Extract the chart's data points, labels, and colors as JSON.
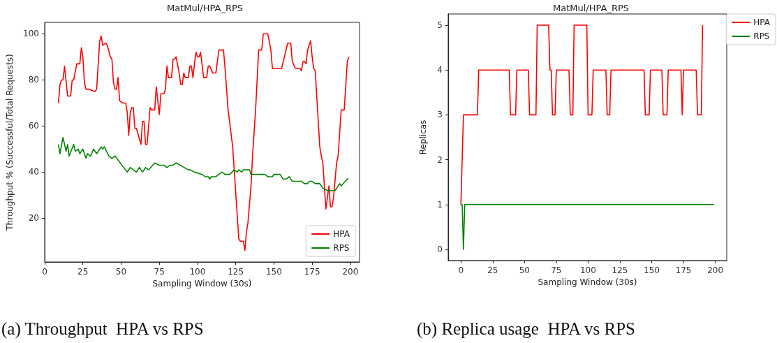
{
  "chart_data": [
    {
      "type": "line",
      "title": "MatMul/HPA_RPS",
      "xlabel": "Sampling Window (30s)",
      "ylabel": "Throughput % (Successful/Total Requests)",
      "xlim": [
        0,
        206
      ],
      "ylim": [
        1,
        105
      ],
      "xticks": [
        0,
        25,
        50,
        75,
        100,
        125,
        150,
        175,
        200
      ],
      "yticks": [
        20,
        40,
        60,
        80,
        100
      ],
      "legend": "bottom right",
      "annotations": [
        "(a) Throughput  HPA vs RPS"
      ],
      "series": [
        {
          "name": "HPA",
          "color": "#ff0000",
          "x": [
            9,
            10,
            11,
            12,
            13,
            15,
            17,
            18,
            19,
            21,
            23,
            24,
            25,
            26,
            27,
            29,
            33,
            34,
            36,
            37,
            38,
            40,
            41,
            43,
            44,
            45,
            46,
            47,
            48,
            49,
            51,
            52,
            53,
            54,
            55,
            56,
            57,
            58,
            59,
            60,
            63,
            64,
            65,
            66,
            67,
            69,
            70,
            72,
            73,
            75,
            76,
            78,
            79,
            80,
            81,
            83,
            84,
            85,
            86,
            88,
            89,
            90,
            91,
            92,
            94,
            95,
            96,
            97,
            98,
            99,
            100,
            101,
            102,
            104,
            106,
            107,
            108,
            110,
            112,
            114,
            117,
            118,
            120,
            123,
            127,
            128,
            130,
            131,
            132,
            133,
            135,
            136,
            138,
            140,
            142,
            143,
            144,
            146,
            148,
            149,
            155,
            159,
            161,
            162,
            164,
            167,
            168,
            169,
            170,
            171,
            172,
            174,
            175,
            176,
            177,
            180,
            181,
            182,
            184,
            186,
            187,
            188,
            189,
            191,
            192,
            194,
            196,
            198,
            199
          ],
          "values": [
            70,
            78,
            80,
            80,
            86,
            73,
            73,
            80,
            80,
            87,
            87,
            94,
            90,
            79,
            76,
            76,
            75,
            76,
            97,
            99,
            95,
            96,
            95,
            90,
            89,
            79,
            76,
            76,
            81,
            71,
            70,
            70,
            70,
            66,
            56,
            66,
            68,
            68,
            59,
            59,
            52,
            62,
            62,
            52,
            52,
            68,
            67,
            67,
            77,
            65,
            74,
            74,
            76,
            86,
            81,
            81,
            89,
            89,
            90,
            83,
            78,
            78,
            83,
            81,
            81,
            86,
            86,
            81,
            87,
            92,
            90,
            90,
            92,
            81,
            81,
            86,
            86,
            83,
            83,
            93,
            93,
            85,
            67,
            51,
            11,
            10,
            10,
            6,
            14,
            18,
            34,
            47,
            67,
            93,
            93,
            100,
            100,
            100,
            93,
            85,
            85,
            96,
            96,
            88,
            85,
            85,
            84,
            88,
            88,
            87,
            93,
            97,
            90,
            85,
            84,
            51,
            47,
            44,
            24,
            34,
            25,
            25,
            29,
            44,
            47,
            67,
            67,
            88,
            90
          ]
        },
        {
          "name": "RPS",
          "color": "#008000",
          "x": [
            9,
            10,
            12,
            14,
            15,
            16,
            19,
            20,
            22,
            23,
            25,
            27,
            28,
            30,
            32,
            34,
            37,
            38,
            39,
            42,
            44,
            46,
            54,
            56,
            60,
            62,
            64,
            66,
            68,
            72,
            75,
            77,
            78,
            80,
            82,
            84,
            86,
            94,
            95,
            98,
            103,
            105,
            107,
            108,
            109,
            112,
            114,
            116,
            118,
            121,
            124,
            126,
            127,
            129,
            130,
            134,
            135,
            138,
            139,
            143,
            144,
            146,
            149,
            150,
            154,
            156,
            158,
            160,
            162,
            166,
            168,
            170,
            172,
            173,
            175,
            177,
            179,
            180,
            182,
            185,
            190,
            193,
            194,
            198,
            199
          ],
          "values": [
            52,
            48,
            55,
            49,
            52,
            47,
            52,
            49,
            50,
            48,
            50,
            46,
            48,
            47,
            50,
            48,
            51,
            50,
            51,
            47,
            46,
            47,
            40,
            42,
            40,
            42,
            40,
            42,
            41,
            44,
            43,
            43,
            43,
            42,
            43,
            43,
            44,
            41,
            41,
            40,
            39,
            38,
            38,
            37,
            38,
            38,
            39,
            40,
            39,
            39,
            41,
            40,
            41,
            40,
            41,
            41,
            39,
            39,
            39,
            39,
            39,
            38,
            38,
            39,
            39,
            37,
            37,
            38,
            36,
            36,
            36,
            35,
            35,
            36,
            36,
            35,
            35,
            35,
            33,
            32,
            32,
            35,
            34,
            37,
            37
          ]
        }
      ]
    },
    {
      "type": "line",
      "title": "MatMul/HPA_RPS",
      "xlabel": "Sampling Window (30s)",
      "ylabel": "Replicas",
      "xlim": [
        -10,
        209
      ],
      "ylim": [
        -0.25,
        5.25
      ],
      "xticks": [
        0,
        25,
        50,
        75,
        100,
        125,
        150,
        175,
        200
      ],
      "yticks": [
        0,
        1,
        2,
        3,
        4,
        5
      ],
      "legend": "top right",
      "annotations": [
        "(b) Replica usage  HPA vs RPS"
      ],
      "series": [
        {
          "name": "HPA",
          "color": "#ff0000",
          "x": [
            0,
            2,
            13,
            14,
            38,
            39,
            43,
            44,
            53,
            54,
            59,
            60,
            69,
            70,
            71,
            72,
            74,
            75,
            85,
            86,
            88,
            89,
            99,
            100,
            103,
            104,
            114,
            115,
            117,
            118,
            144,
            145,
            148,
            149,
            158,
            159,
            162,
            163,
            173,
            174,
            175,
            185,
            186,
            189,
            190
          ],
          "values": [
            1,
            3,
            3,
            4,
            4,
            3,
            3,
            4,
            4,
            3,
            3,
            5,
            5,
            4,
            4,
            3,
            3,
            4,
            4,
            3,
            3,
            5,
            5,
            3,
            3,
            4,
            4,
            3,
            3,
            4,
            4,
            3,
            3,
            4,
            4,
            3,
            3,
            4,
            4,
            3,
            4,
            4,
            3,
            3,
            5
          ]
        },
        {
          "name": "RPS",
          "color": "#008000",
          "x": [
            0,
            1,
            2,
            3,
            199
          ],
          "values": [
            1,
            1,
            0,
            1,
            1
          ]
        }
      ]
    }
  ]
}
